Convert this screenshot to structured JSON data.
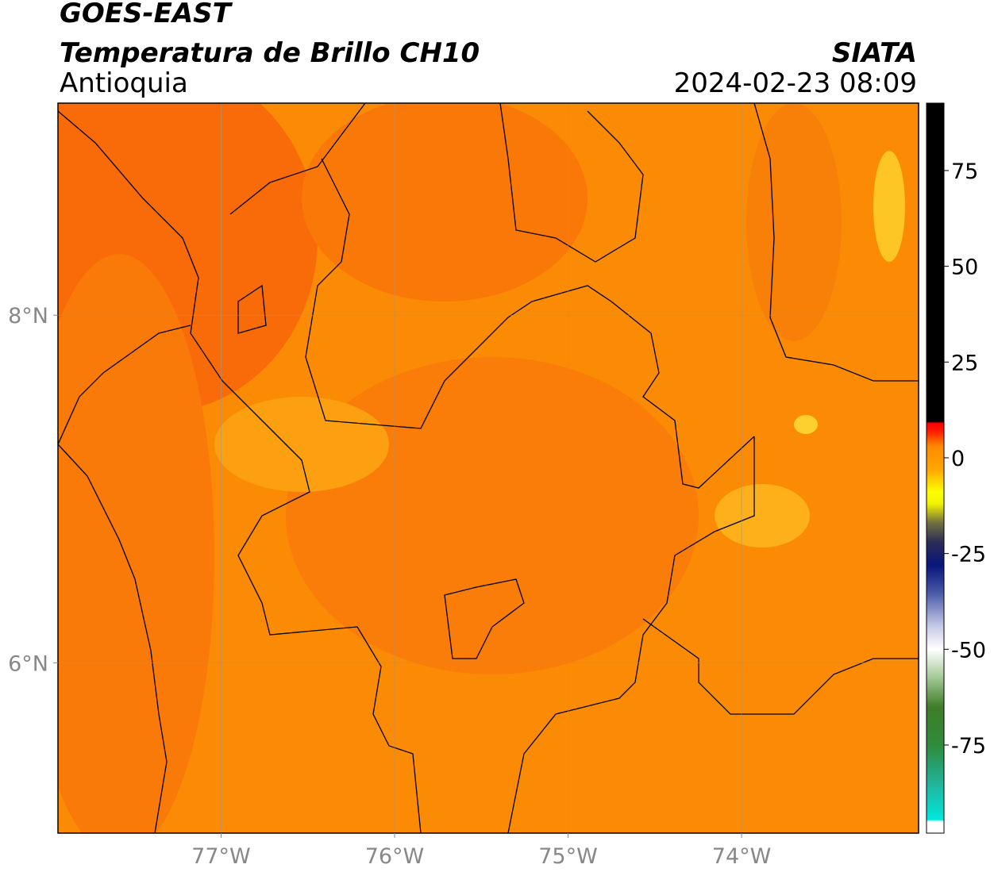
{
  "header": {
    "title": "GOES-EAST",
    "subtitle": "Temperatura de Brillo CH10",
    "region": "Antioquia",
    "source": "SIATA",
    "timestamp": "2024-02-23 08:09"
  },
  "chart_data": {
    "type": "map",
    "xlim": [
      -77.94,
      -72.98
    ],
    "ylim": [
      5.02,
      9.22
    ],
    "xticks": [
      {
        "value": -77,
        "label": "77°W"
      },
      {
        "value": -76,
        "label": "76°W"
      },
      {
        "value": -75,
        "label": "75°W"
      },
      {
        "value": -74,
        "label": "74°W"
      }
    ],
    "yticks": [
      {
        "value": 8,
        "label": "8°N"
      },
      {
        "value": 6,
        "label": "6°N"
      }
    ],
    "grid": true,
    "colorbar": {
      "lim": [
        -98,
        92.6
      ],
      "ticks": [
        75,
        50,
        25,
        0,
        -25,
        -50,
        -75
      ],
      "colormap": [
        {
          "value": -98,
          "color": "#ffffff"
        },
        {
          "value": -95,
          "color": "#ffffff"
        },
        {
          "value": -94.5,
          "color": "#00e8dc"
        },
        {
          "value": -85,
          "color": "#22b39a"
        },
        {
          "value": -75,
          "color": "#2e8b3a"
        },
        {
          "value": -65,
          "color": "#3f7d2a"
        },
        {
          "value": -57,
          "color": "#a8cc9c"
        },
        {
          "value": -50,
          "color": "#ffffff"
        },
        {
          "value": -44,
          "color": "#c6cae6"
        },
        {
          "value": -35,
          "color": "#4656a6"
        },
        {
          "value": -28,
          "color": "#08157a"
        },
        {
          "value": -22,
          "color": "#2c2c58"
        },
        {
          "value": -17,
          "color": "#707040"
        },
        {
          "value": -12,
          "color": "#f2f200"
        },
        {
          "value": -9,
          "color": "#ffff00"
        },
        {
          "value": -3,
          "color": "#ffa500"
        },
        {
          "value": 3,
          "color": "#ff8a00"
        },
        {
          "value": 7,
          "color": "#ff1a00"
        },
        {
          "value": 9,
          "color": "#ff0000"
        },
        {
          "value": 9.5,
          "color": "#000000"
        },
        {
          "value": 92.6,
          "color": "#000000"
        }
      ]
    }
  }
}
